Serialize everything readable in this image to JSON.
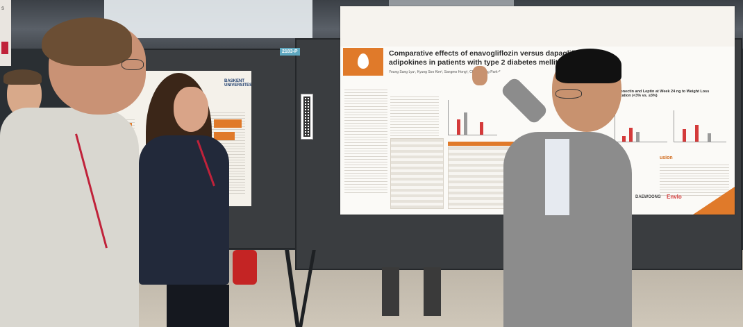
{
  "poster": {
    "title": "Comparative effects of enavogliflozin versus dapagliflozin on adipokines in patients with type 2 diabetes mellitus",
    "authors": "Young Sang Lyu¹, Kyung Soo Kim², Sangmo Hong³, Cheol-Young Park⁴*",
    "right_title": "in Adiponectin and Leptin at Week 24 ng to Weight Loss Stratification (<3% vs. ≥3%)",
    "conclusion_heading": "usion",
    "sponsors": [
      "DAEWOONG",
      "Envlo"
    ]
  },
  "left_poster": {
    "university": "BASKENT UNIVERSITESI"
  },
  "board_number": "2183-P",
  "colors": {
    "accent_orange": "#e07a2a",
    "board_gray": "#3a3d40",
    "lanyard_red": "#c0223a"
  }
}
